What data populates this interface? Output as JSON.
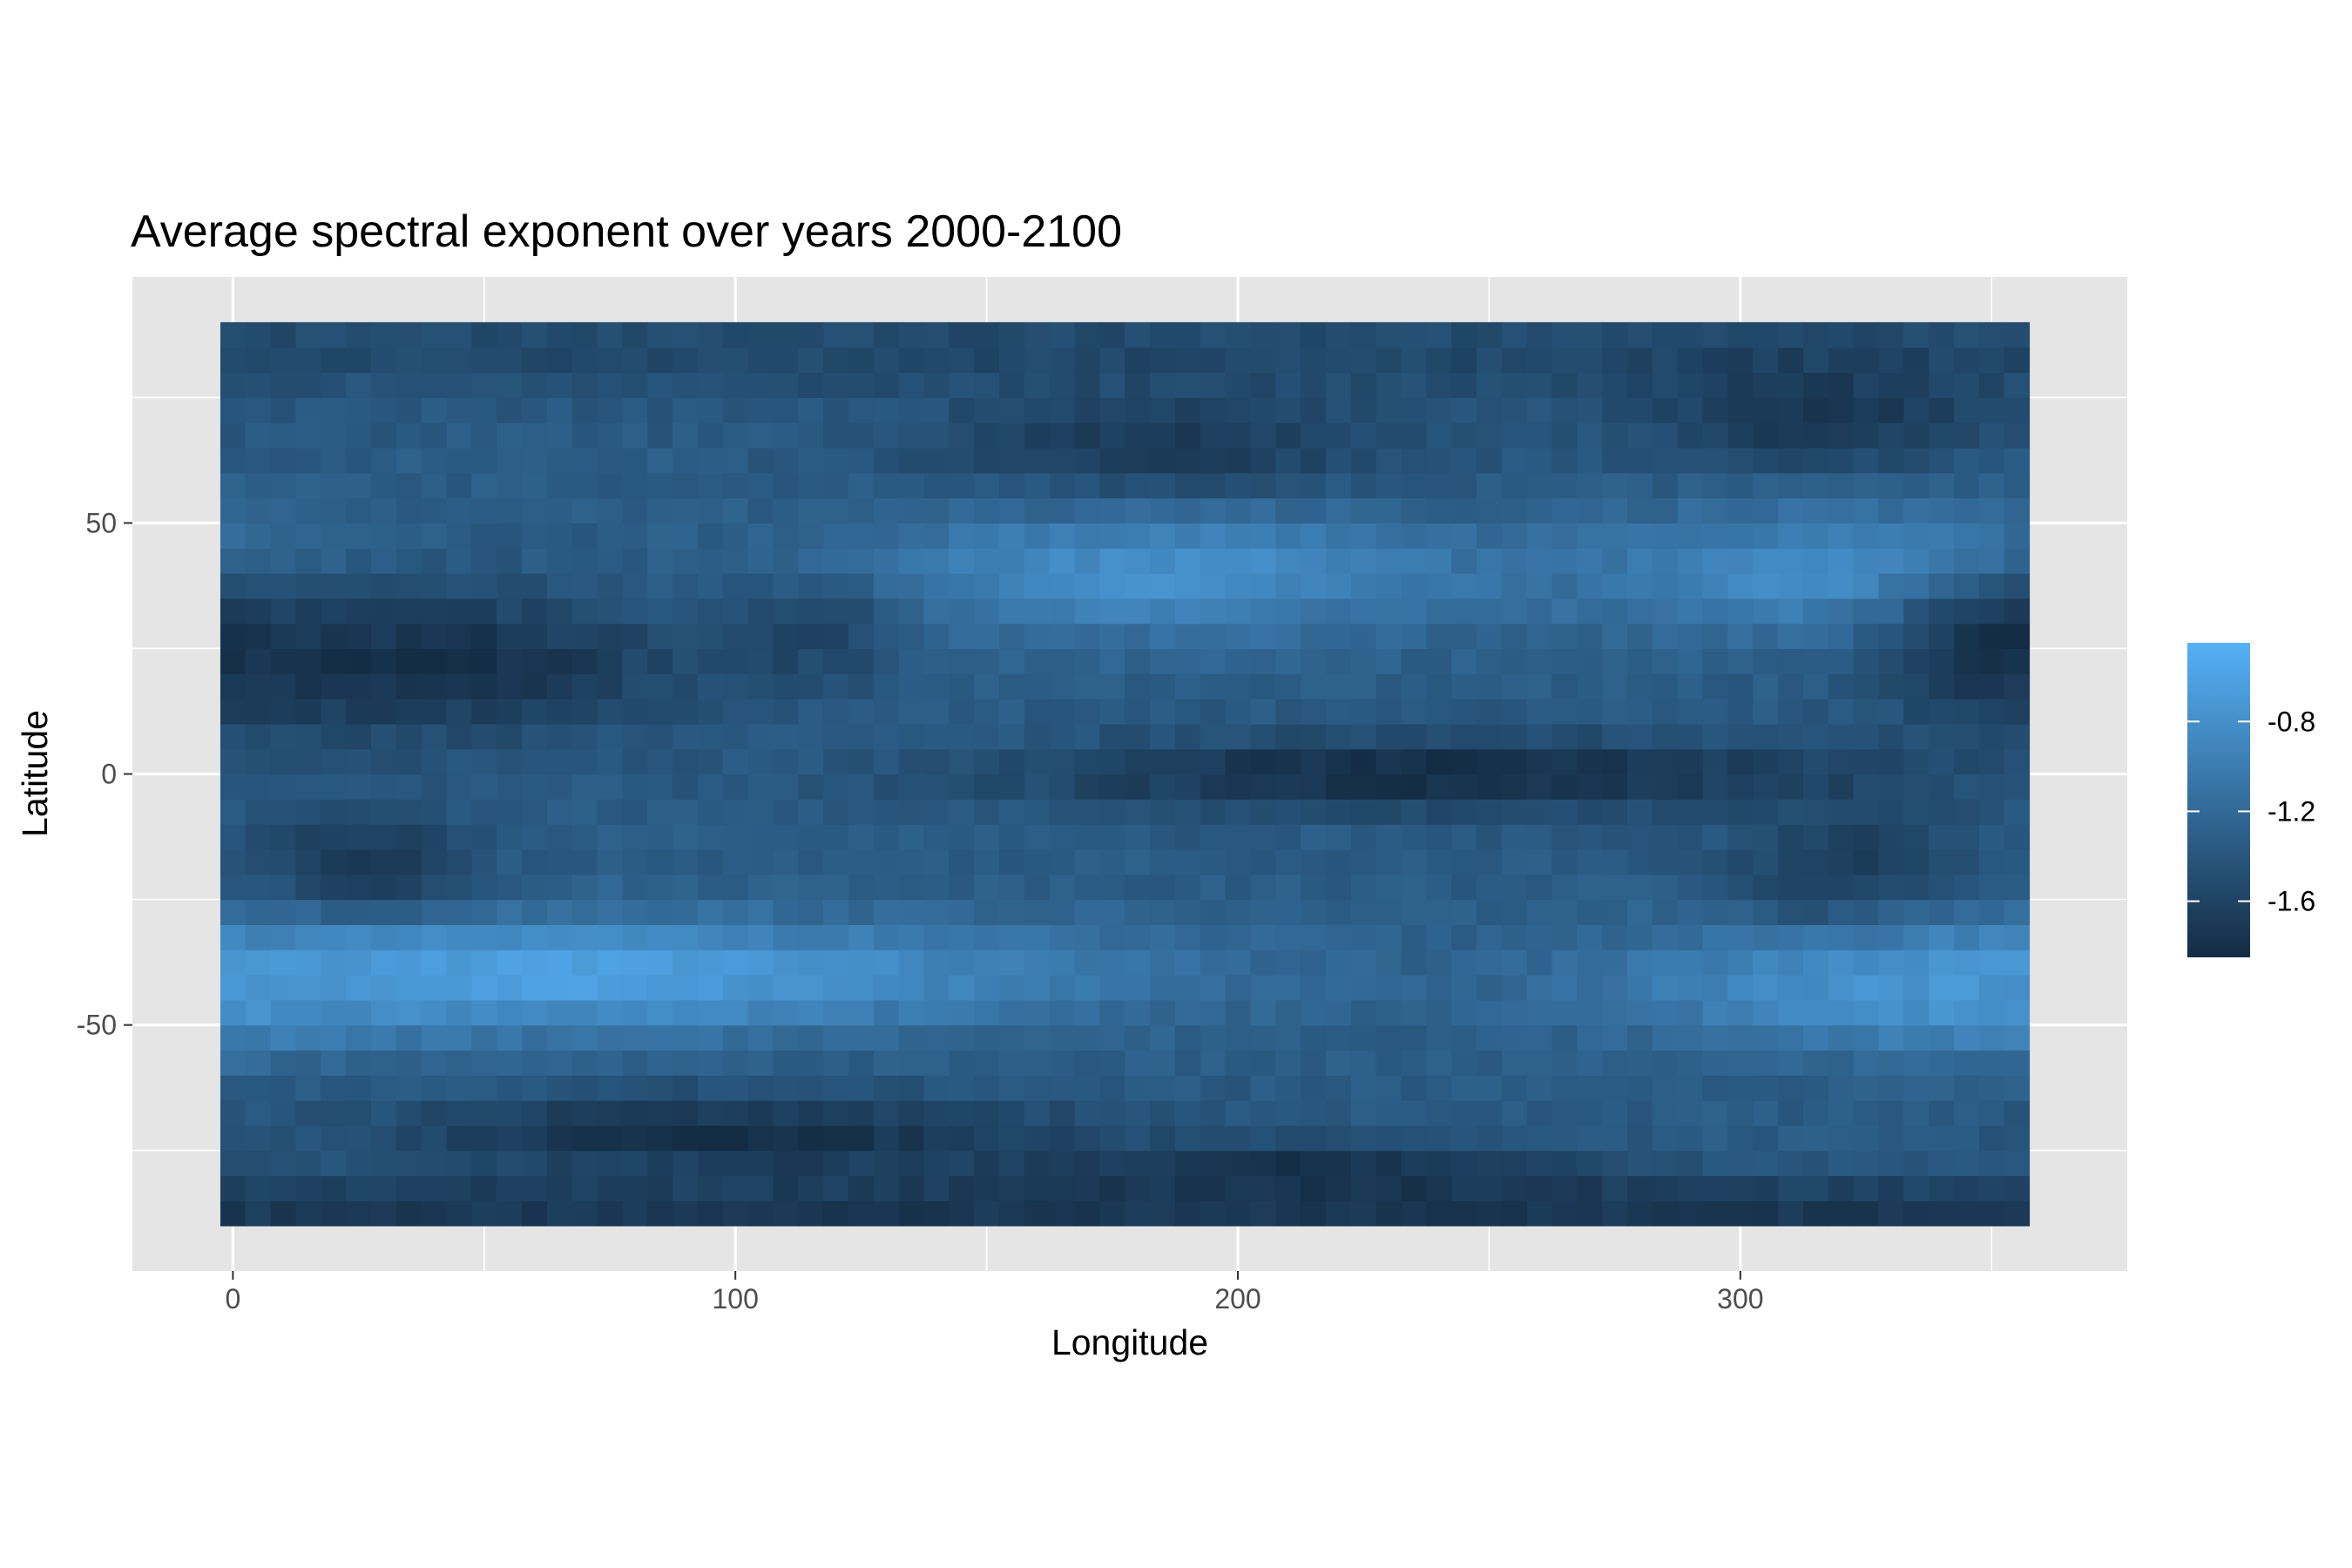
{
  "chart_data": {
    "type": "heatmap",
    "title": "Average spectral exponent over years 2000-2100",
    "xlabel": "Longitude",
    "ylabel": "Latitude",
    "xlim": [
      -20,
      377
    ],
    "ylim": [
      -99,
      99
    ],
    "x_ticks": [
      {
        "value": 0,
        "label": "0"
      },
      {
        "value": 100,
        "label": "100"
      },
      {
        "value": 200,
        "label": "200"
      },
      {
        "value": 300,
        "label": "300"
      }
    ],
    "y_ticks": [
      {
        "value": 50,
        "label": "50"
      },
      {
        "value": 0,
        "label": "0"
      },
      {
        "value": -50,
        "label": "-50"
      }
    ],
    "x_minor_breaks": [
      50,
      150,
      250,
      350
    ],
    "y_minor_breaks": [
      75,
      25,
      -25,
      -75
    ],
    "grid": true,
    "panel_background": "#e5e5e5",
    "grid_color": "#ffffff",
    "cell_size_degrees": 5,
    "x_extent": [
      -2.5,
      357.5
    ],
    "y_extent": [
      -90,
      90
    ],
    "colorscale": {
      "low_color": "#132b43",
      "high_color": "#56b1f7",
      "min": -1.85,
      "max": -0.45
    },
    "legend": {
      "position": "right",
      "title": "",
      "breaks": [
        {
          "value": -0.8,
          "label": "-0.8"
        },
        {
          "value": -1.2,
          "label": "-1.2"
        },
        {
          "value": -1.6,
          "label": "-1.6"
        }
      ]
    },
    "field_features": [
      {
        "lat": 84,
        "lon": 180,
        "value": -1.55,
        "sigma_lat": 6,
        "sigma_lon": 400
      },
      {
        "lat": 65,
        "lon": 185,
        "value": -1.7,
        "sigma_lat": 8,
        "sigma_lon": 35
      },
      {
        "lat": 72,
        "lon": 315,
        "value": -1.75,
        "sigma_lat": 8,
        "sigma_lon": 25
      },
      {
        "lat": 40,
        "lon": 185,
        "value": -0.8,
        "sigma_lat": 9,
        "sigma_lon": 45
      },
      {
        "lat": 40,
        "lon": 320,
        "value": -0.8,
        "sigma_lat": 9,
        "sigma_lon": 35
      },
      {
        "lat": 22,
        "lon": 40,
        "value": -1.8,
        "sigma_lat": 10,
        "sigma_lon": 35
      },
      {
        "lat": 25,
        "lon": 355,
        "value": -1.8,
        "sigma_lat": 10,
        "sigma_lon": 18
      },
      {
        "lat": 28,
        "lon": 115,
        "value": -1.6,
        "sigma_lat": 8,
        "sigma_lon": 12
      },
      {
        "lat": 0,
        "lon": 240,
        "value": -1.85,
        "sigma_lat": 5,
        "sigma_lon": 60
      },
      {
        "lat": -20,
        "lon": 25,
        "value": -1.75,
        "sigma_lat": 9,
        "sigma_lon": 15
      },
      {
        "lat": -22,
        "lon": 320,
        "value": -1.7,
        "sigma_lat": 12,
        "sigma_lon": 15
      },
      {
        "lat": -40,
        "lon": 60,
        "value": -0.6,
        "sigma_lat": 8,
        "sigma_lon": 80
      },
      {
        "lat": -43,
        "lon": 340,
        "value": -0.75,
        "sigma_lat": 8,
        "sigma_lon": 40
      },
      {
        "lat": -72,
        "lon": 100,
        "value": -1.8,
        "sigma_lat": 6,
        "sigma_lon": 50
      },
      {
        "lat": -80,
        "lon": 215,
        "value": -1.85,
        "sigma_lat": 4,
        "sigma_lon": 40
      },
      {
        "lat": -86,
        "lon": 180,
        "value": -1.75,
        "sigma_lat": 4,
        "sigma_lon": 400
      }
    ]
  }
}
